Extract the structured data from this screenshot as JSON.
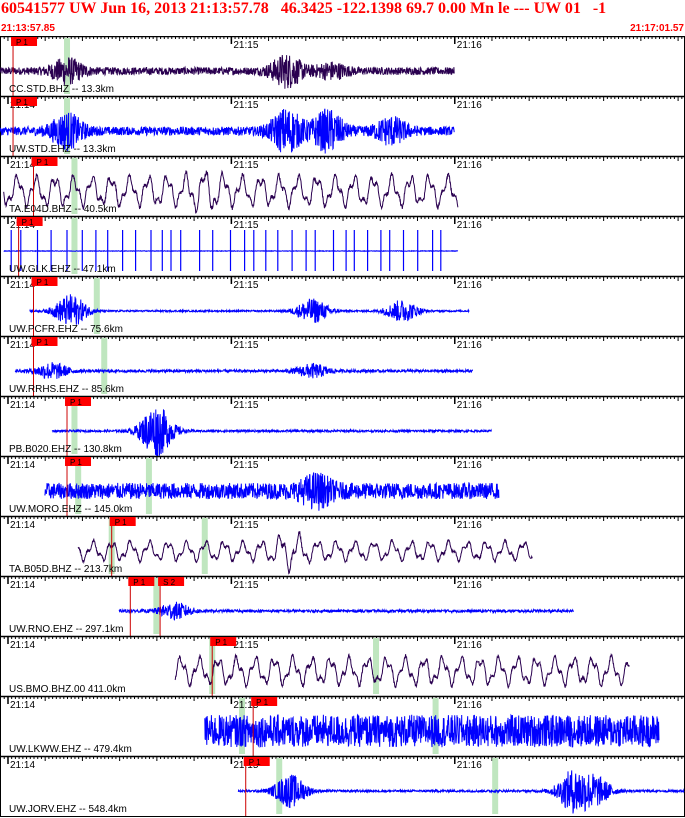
{
  "header": {
    "title": "60541577 UW Jun 16, 2013 21:13:57.78   46.3425 -122.1398 69.7 0.00 Mn le --- UW 01   -1",
    "start_time": "21:13:57.85",
    "end_time": "21:17:01.57"
  },
  "colors": {
    "header_text": "#ff0000",
    "pick_box": "#ff0000",
    "pick_line": "#cc0000",
    "window_band": "#bfe6bf",
    "trace_short_period": "#0000ff",
    "trace_broadband": "#2a0050",
    "trace_mixed": "#1a0090"
  },
  "chart_data": {
    "type": "line",
    "x_units": "seconds after 21:13:57.85",
    "xlim": [
      0,
      183.72
    ],
    "minute_ticks": [
      {
        "label": "21:14",
        "t": 2.15
      },
      {
        "label": "21:15",
        "t": 62.15
      },
      {
        "label": "21:16",
        "t": 122.15
      }
    ],
    "traces": [
      {
        "label": "CC.STD.BHZ -- 13.3km",
        "color": "#2a0050",
        "style": "noise",
        "start": 0,
        "end": 122,
        "amp": 0.14,
        "bursts": [
          {
            "t": 18,
            "a": 0.42
          },
          {
            "t": 77,
            "a": 0.55
          },
          {
            "t": 89,
            "a": 0.25
          }
        ],
        "picks": [
          {
            "label": "P 1",
            "t": 3.5
          }
        ],
        "bands": [
          {
            "t": 18
          }
        ]
      },
      {
        "label": "UW.STD.EHZ -- 13.3km",
        "color": "#0000ff",
        "style": "noise",
        "start": 0,
        "end": 122,
        "amp": 0.16,
        "bursts": [
          {
            "t": 18,
            "a": 0.6
          },
          {
            "t": 77,
            "a": 0.75
          },
          {
            "t": 88,
            "a": 0.7
          },
          {
            "t": 105,
            "a": 0.45
          }
        ],
        "picks": [
          {
            "label": "P 1",
            "t": 3.5
          }
        ],
        "bands": [
          {
            "t": 18
          }
        ]
      },
      {
        "label": "TA.E04D.BHZ -- 40.5km",
        "color": "#2a0050",
        "style": "wave",
        "start": 1,
        "end": 123,
        "amp": 0.55,
        "bursts": [
          {
            "t": 55,
            "a": 0.25
          }
        ],
        "picks": [
          {
            "label": "P 1",
            "t": 9
          }
        ],
        "bands": [
          {
            "t": 20
          }
        ]
      },
      {
        "label": "UW.GLK.EHZ -- 47.1km",
        "color": "#0000ff",
        "style": "spikes",
        "start": 1,
        "end": 123,
        "amp": 0.1,
        "bursts": [],
        "picks": [
          {
            "label": "P 1",
            "t": 5
          }
        ],
        "bands": [
          {
            "t": 20
          }
        ]
      },
      {
        "label": "UW.PCFR.EHZ -- 75.6km",
        "color": "#0000ff",
        "style": "noise",
        "start": 8,
        "end": 126,
        "amp": 0.03,
        "bursts": [
          {
            "t": 19,
            "a": 0.6
          },
          {
            "t": 84,
            "a": 0.45
          },
          {
            "t": 108,
            "a": 0.4
          }
        ],
        "picks": [
          {
            "label": "P 1",
            "t": 9
          }
        ],
        "bands": [
          {
            "t": 26
          }
        ]
      },
      {
        "label": "UW.RRHS.EHZ -- 85.6km",
        "color": "#0000ff",
        "style": "noise",
        "start": 4,
        "end": 127,
        "amp": 0.05,
        "bursts": [
          {
            "t": 14,
            "a": 0.3
          },
          {
            "t": 84,
            "a": 0.25
          }
        ],
        "picks": [
          {
            "label": "P 1",
            "t": 9
          }
        ],
        "bands": [
          {
            "t": 28
          }
        ]
      },
      {
        "label": "PB.B020.EHZ -- 130.8km",
        "color": "#0000ff",
        "style": "noise",
        "start": 14,
        "end": 132,
        "amp": 0.04,
        "bursts": [
          {
            "t": 42,
            "a": 0.95
          }
        ],
        "picks": [
          {
            "label": "P 1",
            "t": 18
          }
        ],
        "bands": [
          {
            "t": 20
          }
        ]
      },
      {
        "label": "UW.MORO.EHZ -- 145.0km",
        "color": "#0000ff",
        "style": "noise",
        "start": 12,
        "end": 134,
        "amp": 0.3,
        "bursts": [
          {
            "t": 85,
            "a": 0.45
          }
        ],
        "picks": [
          {
            "label": "P 1",
            "t": 18
          }
        ],
        "bands": [
          {
            "t": 21
          },
          {
            "t": 40
          }
        ]
      },
      {
        "label": "TA.B05D.BHZ -- 213.7km",
        "color": "#2a0050",
        "style": "wave",
        "start": 21,
        "end": 143,
        "amp": 0.35,
        "bursts": [
          {
            "t": 78,
            "a": 0.35
          }
        ],
        "picks": [
          {
            "label": "P 1",
            "t": 30
          }
        ],
        "bands": [
          {
            "t": 30
          },
          {
            "t": 55
          }
        ]
      },
      {
        "label": "UW.RNO.EHZ -- 297.1km",
        "color": "#0000ff",
        "style": "noise",
        "start": 32,
        "end": 154,
        "amp": 0.05,
        "bursts": [
          {
            "t": 47,
            "a": 0.3
          }
        ],
        "picks": [
          {
            "label": "P 1",
            "t": 35
          },
          {
            "label": "S 2",
            "t": 43
          }
        ],
        "bands": [
          {
            "t": 42
          }
        ]
      },
      {
        "label": "US.BMO.BHZ.00 411.0km",
        "color": "#2a0050",
        "style": "wave",
        "start": 47,
        "end": 169,
        "amp": 0.5,
        "bursts": [],
        "picks": [
          {
            "label": "P 1",
            "t": 57
          }
        ],
        "bands": [
          {
            "t": 57
          },
          {
            "t": 101
          }
        ]
      },
      {
        "label": "UW.LKWW.EHZ -- 479.4km",
        "color": "#0000ff",
        "style": "noise",
        "start": 55,
        "end": 177,
        "amp": 0.6,
        "bursts": [],
        "picks": [
          {
            "label": "P 1",
            "t": 68
          }
        ],
        "bands": [
          {
            "t": 65
          },
          {
            "t": 117
          }
        ]
      },
      {
        "label": "UW.JORV.EHZ -- 548.4km",
        "color": "#0000ff",
        "style": "noise",
        "start": 64,
        "end": 183.72,
        "amp": 0.04,
        "bursts": [
          {
            "t": 78,
            "a": 0.6
          },
          {
            "t": 154,
            "a": 0.75
          },
          {
            "t": 160,
            "a": 0.5
          }
        ],
        "picks": [
          {
            "label": "P 1",
            "t": 66
          }
        ],
        "bands": [
          {
            "t": 75
          },
          {
            "t": 133
          }
        ]
      }
    ]
  }
}
